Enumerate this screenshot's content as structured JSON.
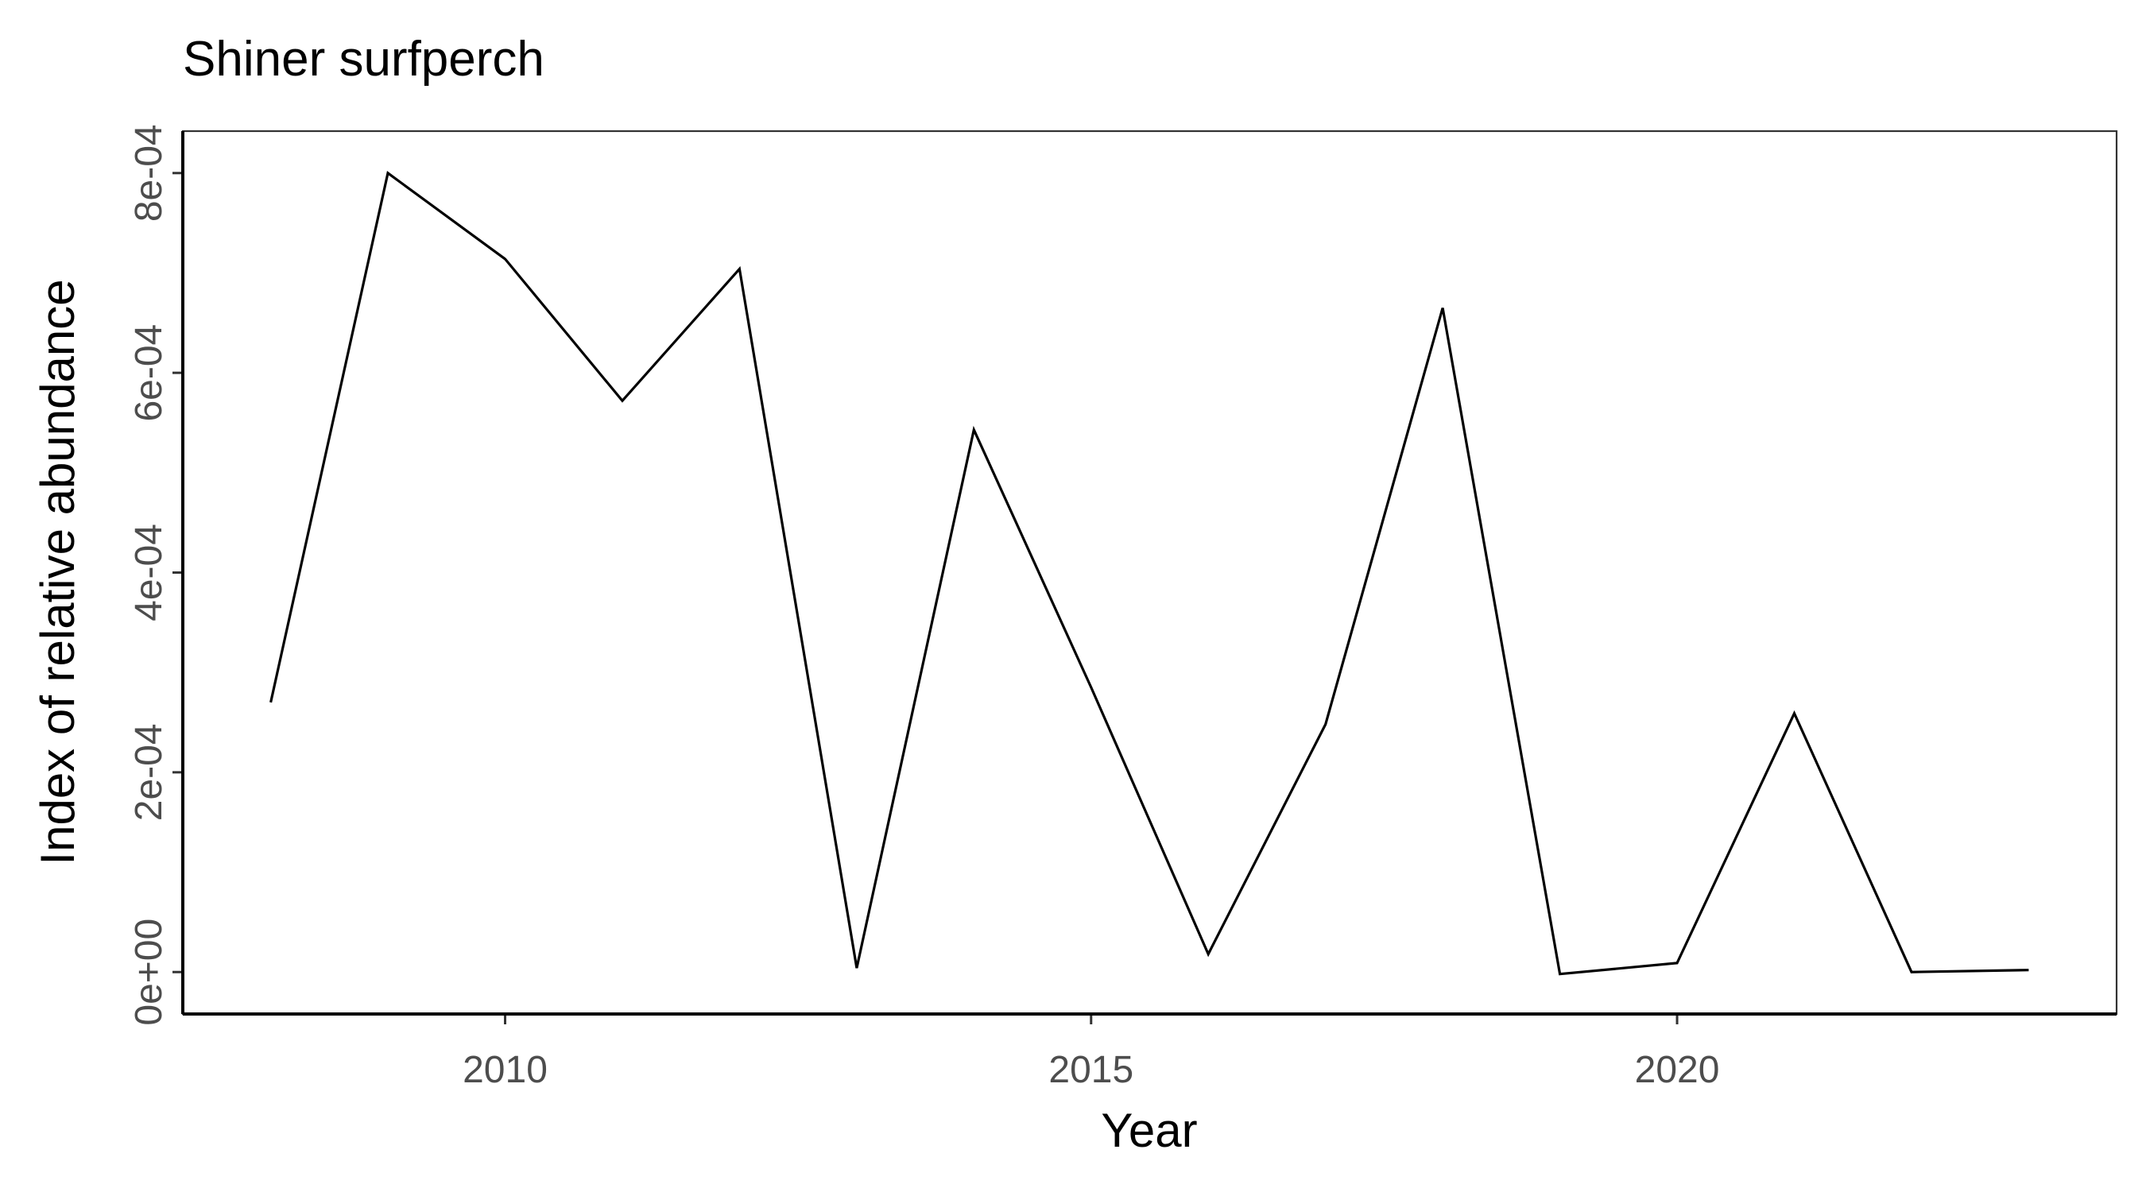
{
  "chart_data": {
    "type": "line",
    "title": "Shiner surfperch",
    "xlabel": "Year",
    "ylabel": "Index of relative abundance",
    "xlim": [
      2007.25,
      2023.75
    ],
    "ylim": [
      -4.2e-05,
      0.000842
    ],
    "x_ticks": [
      2010,
      2015,
      2020
    ],
    "x_tick_labels": [
      "2010",
      "2015",
      "2020"
    ],
    "y_ticks": [
      0,
      0.0002,
      0.0004,
      0.0006,
      0.0008
    ],
    "y_tick_labels": [
      "0e+00",
      "2e-04",
      "4e-04",
      "6e-04",
      "8e-04"
    ],
    "grid": false,
    "legend": "none",
    "line_color": "#000000",
    "series": [
      {
        "x": [
          2008,
          2009,
          2010,
          2011,
          2012,
          2013,
          2014,
          2015,
          2016,
          2017,
          2018,
          2019,
          2020,
          2021,
          2022,
          2023
        ],
        "y": [
          0.00027,
          0.0008,
          0.000714,
          0.000572,
          0.000704,
          4e-06,
          0.000543,
          0.000285,
          1.8e-05,
          0.000248,
          0.000665,
          -2e-06,
          9e-06,
          0.000259,
          0.0,
          2e-06
        ]
      }
    ]
  }
}
